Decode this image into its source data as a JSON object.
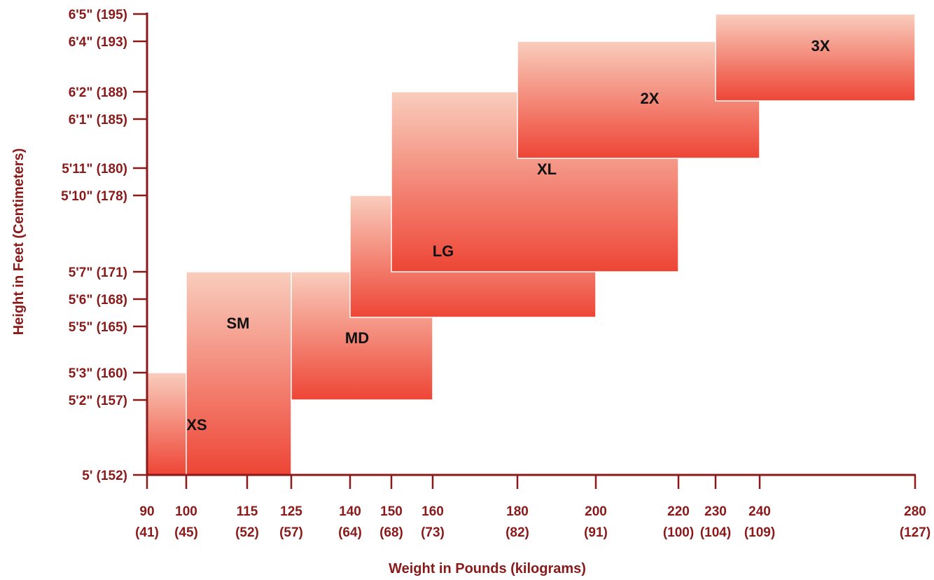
{
  "chart_data": {
    "type": "bar",
    "xlabel": "Weight in Pounds (kilograms)",
    "ylabel": "Height in Feet (Centimeters)",
    "xlim": [
      90,
      280
    ],
    "ylim": [
      152,
      195
    ],
    "x_ticks": [
      {
        "value": 90,
        "lbs": "90",
        "kg": "(41)"
      },
      {
        "value": 100,
        "lbs": "100",
        "kg": "(45)"
      },
      {
        "value": 115,
        "lbs": "115",
        "kg": "(52)"
      },
      {
        "value": 125,
        "lbs": "125",
        "kg": "(57)"
      },
      {
        "value": 140,
        "lbs": "140",
        "kg": "(64)"
      },
      {
        "value": 150,
        "lbs": "150",
        "kg": "(68)"
      },
      {
        "value": 160,
        "lbs": "160",
        "kg": "(73)"
      },
      {
        "value": 180,
        "lbs": "180",
        "kg": "(82)"
      },
      {
        "value": 200,
        "lbs": "200",
        "kg": "(91)"
      },
      {
        "value": 220,
        "lbs": "220",
        "kg": "(100)"
      },
      {
        "value": 230,
        "lbs": "230",
        "kg": "(104)"
      },
      {
        "value": 240,
        "lbs": "240",
        "kg": "(109)"
      },
      {
        "value": 280,
        "lbs": "280",
        "kg": "(127)"
      }
    ],
    "y_ticks": [
      {
        "value": 152,
        "label": "5' (152)"
      },
      {
        "value": 157,
        "label": "5'2\" (157)"
      },
      {
        "value": 160,
        "label": "5'3\" (160)"
      },
      {
        "value": 165,
        "label": "5'5\" (165)"
      },
      {
        "value": 168,
        "label": "5'6\" (168)"
      },
      {
        "value": 171,
        "label": "5'7\" (171)"
      },
      {
        "value": 178,
        "label": "5'10\" (178)"
      },
      {
        "value": 180,
        "label": "5'11\" (180)"
      },
      {
        "value": 185,
        "label": "6'1\" (185)"
      },
      {
        "value": 188,
        "label": "6'2\" (188)"
      },
      {
        "value": 193,
        "label": "6'4\" (193)"
      },
      {
        "value": 195,
        "label": "6'5\" (195)"
      }
    ],
    "sizes": [
      {
        "label": "XS",
        "weight_min": 90,
        "weight_max": 115,
        "height_min": 152,
        "height_max": 160
      },
      {
        "label": "SM",
        "weight_min": 100,
        "weight_max": 125,
        "height_min": 152,
        "height_max": 171
      },
      {
        "label": "MD",
        "weight_min": 125,
        "weight_max": 160,
        "height_min": 157,
        "height_max": 171
      },
      {
        "label": "LG",
        "weight_min": 140,
        "weight_max": 200,
        "height_min": 166,
        "height_max": 178
      },
      {
        "label": "XL",
        "weight_min": 150,
        "weight_max": 220,
        "height_min": 171,
        "height_max": 188
      },
      {
        "label": "2X",
        "weight_min": 180,
        "weight_max": 240,
        "height_min": 181,
        "height_max": 193
      },
      {
        "label": "3X",
        "weight_min": 230,
        "weight_max": 280,
        "height_min": 187,
        "height_max": 195
      }
    ],
    "colors": {
      "axis": "#8a1a1a",
      "box_top": "#f9cdbd",
      "box_bottom": "#ee4535",
      "box_border": "#ffffff",
      "label": "#111111"
    }
  }
}
